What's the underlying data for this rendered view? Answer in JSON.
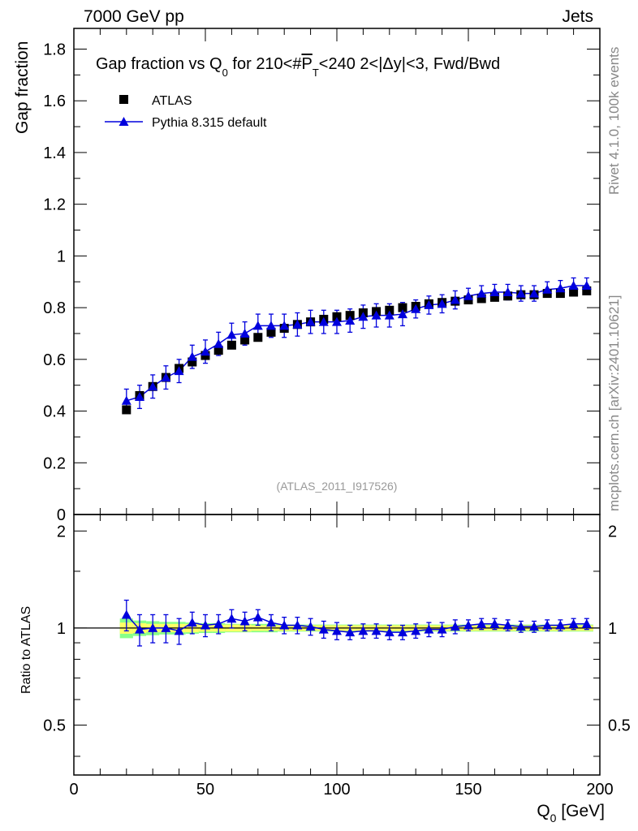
{
  "header": {
    "left": "7000 GeV pp",
    "right": "Jets"
  },
  "side_labels": {
    "rivet": "Rivet 4.1.0,  100k events",
    "mcplots": "mcplots.cern.ch [arXiv:2401.10621]"
  },
  "title": {
    "pre": "Gap fraction vs Q",
    "sub0": "0",
    "mid": " for 210<#",
    "pt": "P",
    "subT": "T",
    "post": "<240  2<|Δy|<3, Fwd/Bwd"
  },
  "watermark": "(ATLAS_2011_I917526)",
  "colors": {
    "mc": "#0000dd",
    "data": "#000000",
    "band_inner": "#ffff66",
    "band_outer": "#88ff88",
    "grey": "#888888"
  },
  "chart_data": [
    {
      "type": "scatter",
      "panel": "main",
      "title": "Gap fraction vs Q0 for 210<#PT<240  2<|Δy|<3, Fwd/Bwd",
      "xlabel": "Q",
      "xlabel_sub": "0",
      "xlabel_unit": " [GeV]",
      "ylabel": "Gap fraction",
      "xlim": [
        0,
        200
      ],
      "ylim": [
        0,
        1.88
      ],
      "x_ticks": [
        0,
        50,
        100,
        150,
        200
      ],
      "x_tick_labels": [
        "0",
        "50",
        "100",
        "150",
        "200"
      ],
      "y_ticks": [
        0,
        0.2,
        0.4,
        0.6,
        0.8,
        1,
        1.2,
        1.4,
        1.6,
        1.8
      ],
      "y_tick_labels": [
        "0",
        "0.2",
        "0.4",
        "0.6",
        "0.8",
        "1",
        "1.2",
        "1.4",
        "1.6",
        "1.8"
      ],
      "legend_position": "top-left",
      "series": [
        {
          "name": "ATLAS",
          "marker": "square",
          "x": [
            20,
            25,
            30,
            35,
            40,
            45,
            50,
            55,
            60,
            65,
            70,
            75,
            80,
            85,
            90,
            95,
            100,
            105,
            110,
            115,
            120,
            125,
            130,
            135,
            140,
            145,
            150,
            155,
            160,
            165,
            170,
            175,
            180,
            185,
            190,
            195
          ],
          "y": [
            0.405,
            0.46,
            0.495,
            0.53,
            0.565,
            0.59,
            0.615,
            0.635,
            0.655,
            0.675,
            0.685,
            0.705,
            0.72,
            0.735,
            0.745,
            0.755,
            0.765,
            0.77,
            0.78,
            0.785,
            0.79,
            0.8,
            0.805,
            0.815,
            0.82,
            0.825,
            0.83,
            0.835,
            0.84,
            0.845,
            0.85,
            0.85,
            0.855,
            0.855,
            0.86,
            0.865
          ]
        },
        {
          "name": "Pythia 8.315 default",
          "marker": "triangle",
          "x": [
            20,
            25,
            30,
            35,
            40,
            45,
            50,
            55,
            60,
            65,
            70,
            75,
            80,
            85,
            90,
            95,
            100,
            105,
            110,
            115,
            120,
            125,
            130,
            135,
            140,
            145,
            150,
            155,
            160,
            165,
            170,
            175,
            180,
            185,
            190,
            195
          ],
          "y": [
            0.44,
            0.455,
            0.495,
            0.53,
            0.555,
            0.61,
            0.63,
            0.66,
            0.695,
            0.7,
            0.73,
            0.73,
            0.73,
            0.735,
            0.745,
            0.745,
            0.745,
            0.75,
            0.765,
            0.77,
            0.77,
            0.775,
            0.795,
            0.81,
            0.815,
            0.83,
            0.845,
            0.855,
            0.86,
            0.86,
            0.855,
            0.855,
            0.87,
            0.875,
            0.885,
            0.885
          ],
          "yerr": [
            0.045,
            0.045,
            0.045,
            0.045,
            0.045,
            0.045,
            0.045,
            0.045,
            0.045,
            0.045,
            0.045,
            0.045,
            0.045,
            0.045,
            0.045,
            0.045,
            0.045,
            0.045,
            0.045,
            0.045,
            0.045,
            0.045,
            0.035,
            0.035,
            0.035,
            0.035,
            0.03,
            0.03,
            0.03,
            0.03,
            0.03,
            0.03,
            0.03,
            0.03,
            0.03,
            0.03
          ]
        }
      ]
    },
    {
      "type": "scatter",
      "panel": "ratio",
      "ylabel": "Ratio to ATLAS",
      "xlim": [
        0,
        200
      ],
      "ylim": [
        0.35,
        2.25
      ],
      "y_ticks": [
        0.5,
        1,
        2
      ],
      "y_tick_labels": [
        "0.5",
        "1",
        "2"
      ],
      "reference_line": 1,
      "data_band": {
        "x": [
          17.5,
          22.5,
          27.5,
          32.5,
          37.5,
          42.5,
          47.5,
          52.5,
          57.5,
          62.5,
          67.5,
          72.5,
          77.5,
          82.5,
          87.5,
          92.5,
          97.5,
          102.5,
          107.5,
          112.5,
          117.5,
          122.5,
          127.5,
          132.5,
          137.5,
          142.5,
          147.5,
          152.5,
          157.5,
          162.5,
          167.5,
          172.5,
          177.5,
          182.5,
          187.5,
          192.5,
          197.5
        ],
        "inner": [
          0.04,
          0.035,
          0.03,
          0.03,
          0.03,
          0.03,
          0.025,
          0.025,
          0.025,
          0.025,
          0.02,
          0.02,
          0.02,
          0.02,
          0.02,
          0.02,
          0.02,
          0.02,
          0.02,
          0.02,
          0.02,
          0.02,
          0.02,
          0.02,
          0.02,
          0.02,
          0.02,
          0.02,
          0.02,
          0.02,
          0.02,
          0.02,
          0.02,
          0.02,
          0.02,
          0.02
        ],
        "outer": [
          0.07,
          0.055,
          0.05,
          0.045,
          0.045,
          0.04,
          0.035,
          0.035,
          0.03,
          0.03,
          0.03,
          0.03,
          0.025,
          0.025,
          0.025,
          0.025,
          0.025,
          0.025,
          0.025,
          0.025,
          0.025,
          0.025,
          0.025,
          0.025,
          0.025,
          0.025,
          0.025,
          0.025,
          0.025,
          0.025,
          0.025,
          0.025,
          0.025,
          0.025,
          0.025,
          0.025
        ]
      },
      "series": [
        {
          "name": "Pythia 8.315 default",
          "x": [
            20,
            25,
            30,
            35,
            40,
            45,
            50,
            55,
            60,
            65,
            70,
            75,
            80,
            85,
            90,
            95,
            100,
            105,
            110,
            115,
            120,
            125,
            130,
            135,
            140,
            145,
            150,
            155,
            160,
            165,
            170,
            175,
            180,
            185,
            190,
            195
          ],
          "y": [
            1.1,
            0.99,
            1.0,
            1.0,
            0.98,
            1.04,
            1.02,
            1.03,
            1.07,
            1.05,
            1.08,
            1.04,
            1.02,
            1.02,
            1.01,
            0.99,
            0.98,
            0.97,
            0.98,
            0.98,
            0.97,
            0.97,
            0.98,
            0.99,
            0.99,
            1.01,
            1.02,
            1.03,
            1.03,
            1.02,
            1.01,
            1.01,
            1.02,
            1.02,
            1.03,
            1.03
          ],
          "yerr": [
            0.12,
            0.11,
            0.1,
            0.1,
            0.09,
            0.08,
            0.08,
            0.07,
            0.07,
            0.07,
            0.06,
            0.06,
            0.06,
            0.06,
            0.06,
            0.06,
            0.06,
            0.05,
            0.05,
            0.05,
            0.05,
            0.05,
            0.05,
            0.05,
            0.05,
            0.05,
            0.04,
            0.04,
            0.04,
            0.04,
            0.04,
            0.04,
            0.04,
            0.04,
            0.04,
            0.04
          ]
        }
      ]
    }
  ]
}
